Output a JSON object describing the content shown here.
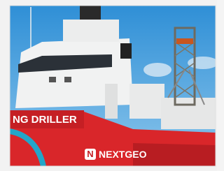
{
  "hull_name": "NG DRILLER",
  "logo": {
    "icon": "N",
    "text": "NEXTGEO"
  }
}
